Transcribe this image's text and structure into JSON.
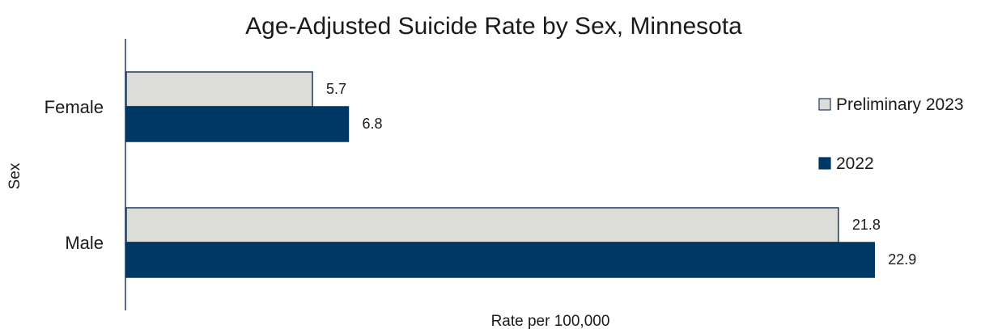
{
  "chart_data": {
    "type": "bar",
    "orientation": "horizontal",
    "title": "Age-Adjusted Suicide Rate by Sex, Minnesota",
    "xlabel": "Rate per 100,000",
    "ylabel": "Sex",
    "categories": [
      "Female",
      "Male"
    ],
    "series": [
      {
        "name": "Preliminary 2023",
        "values": [
          5.7,
          21.8
        ],
        "color": "#DCDCD9",
        "border": "#1F3A5F"
      },
      {
        "name": "2022",
        "values": [
          6.8,
          22.9
        ],
        "color": "#003865",
        "border": "#003865"
      }
    ],
    "xlim": [
      0,
      25
    ],
    "grid": false,
    "legend_position": "right",
    "data_labels": true
  }
}
